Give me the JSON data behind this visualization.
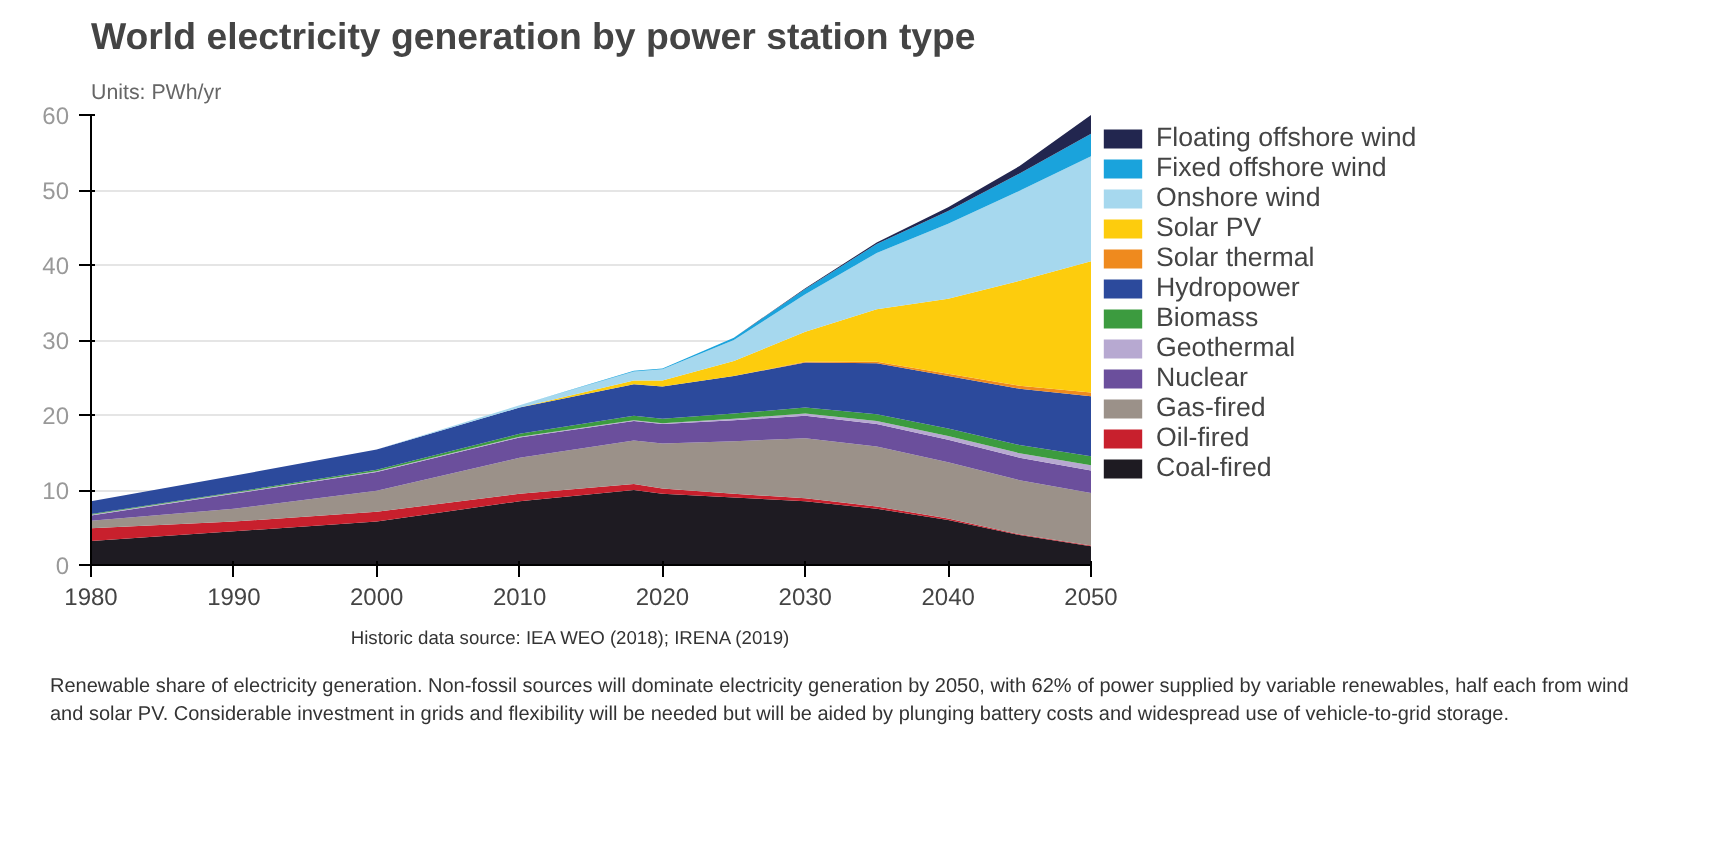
{
  "chart_data": {
    "type": "area",
    "stacked": true,
    "title": "World electricity generation by power station type",
    "subtitle": "Units: PWh/yr",
    "x": [
      1980,
      1990,
      2000,
      2010,
      2018,
      2020,
      2025,
      2030,
      2035,
      2040,
      2045,
      2050
    ],
    "xlim": [
      1980,
      2050
    ],
    "xticks": [
      1980,
      1990,
      2000,
      2010,
      2020,
      2030,
      2040,
      2050
    ],
    "ylim": [
      0,
      60
    ],
    "yticks": [
      0,
      10,
      20,
      30,
      40,
      50,
      60
    ],
    "grid": "y",
    "legend": "right",
    "series": [
      {
        "name": "Coal-fired",
        "color": "#1e1b22",
        "values": [
          3.2,
          4.5,
          5.8,
          8.5,
          10,
          9.5,
          9,
          8.5,
          7.5,
          6,
          4,
          2.5
        ]
      },
      {
        "name": "Oil-fired",
        "color": "#c8202d",
        "values": [
          1.7,
          1.3,
          1.3,
          1.0,
          0.8,
          0.7,
          0.5,
          0.4,
          0.3,
          0.2,
          0.1,
          0.1
        ]
      },
      {
        "name": "Gas-fired",
        "color": "#9b9189",
        "values": [
          1.0,
          1.7,
          2.8,
          4.8,
          5.8,
          6,
          7,
          8,
          8,
          7.5,
          7.2,
          7
        ]
      },
      {
        "name": "Nuclear",
        "color": "#6b4f9c",
        "values": [
          0.7,
          2.0,
          2.5,
          2.7,
          2.6,
          2.6,
          2.8,
          3,
          3,
          3,
          3,
          3
        ]
      },
      {
        "name": "Geothermal",
        "color": "#b7a9d1",
        "values": [
          0.1,
          0.1,
          0.1,
          0.1,
          0.1,
          0.1,
          0.2,
          0.3,
          0.4,
          0.5,
          0.6,
          0.7
        ]
      },
      {
        "name": "Biomass",
        "color": "#3c9b3f",
        "values": [
          0.1,
          0.1,
          0.2,
          0.4,
          0.6,
          0.6,
          0.7,
          0.8,
          0.9,
          1.0,
          1.1,
          1.2
        ]
      },
      {
        "name": "Hydropower",
        "color": "#2c4a9c",
        "values": [
          1.7,
          2.2,
          2.7,
          3.5,
          4.2,
          4.3,
          5,
          6,
          6.8,
          7,
          7.5,
          8
        ]
      },
      {
        "name": "Solar thermal",
        "color": "#ef8a1e",
        "values": [
          0,
          0,
          0,
          0,
          0,
          0,
          0,
          0.1,
          0.2,
          0.3,
          0.4,
          0.5
        ]
      },
      {
        "name": "Solar PV",
        "color": "#fdcc0d",
        "values": [
          0,
          0,
          0,
          0,
          0.5,
          0.8,
          2,
          4,
          7,
          10,
          14,
          17.5
        ]
      },
      {
        "name": "Onshore wind",
        "color": "#a6d8ee",
        "values": [
          0,
          0,
          0,
          0.3,
          1.2,
          1.5,
          2.8,
          5,
          7.5,
          10,
          12,
          14
        ]
      },
      {
        "name": "Fixed offshore wind",
        "color": "#1aa3dc",
        "values": [
          0,
          0,
          0,
          0,
          0.1,
          0.1,
          0.3,
          0.7,
          1.2,
          1.7,
          2.3,
          3
        ]
      },
      {
        "name": "Floating offshore wind",
        "color": "#22264f",
        "values": [
          0,
          0,
          0,
          0,
          0,
          0,
          0,
          0.1,
          0.2,
          0.5,
          1,
          2.5
        ]
      }
    ],
    "annotations": [
      "Historic data source: IEA WEO (2018); IRENA (2019)",
      "Renewable share of electricity generation. Non-fossil sources will dominate electricity generation by 2050, with 62% of power supplied by variable renewables, half each from wind and solar PV. Considerable investment in grids and flexibility will be needed but will be aided by plunging battery costs and widespread use of vehicle-to-grid storage."
    ]
  }
}
